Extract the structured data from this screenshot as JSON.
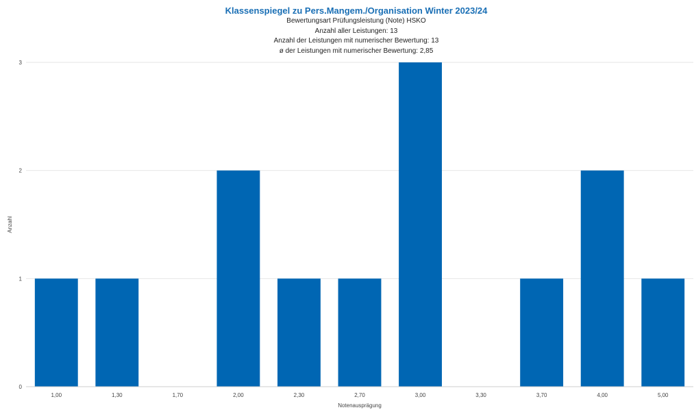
{
  "chart_data": {
    "type": "bar",
    "title": "Klassenspiegel zu Pers.Mangem./Organisation Winter 2023/24",
    "subtitle_lines": [
      "Bewertungsart Prüfungsleistung (Note) HSKO",
      "Anzahl aller Leistungen: 13",
      "Anzahl der Leistungen mit numerischer Bewertung: 13",
      "ø der Leistungen mit numerischer Bewertung: 2,85"
    ],
    "xlabel": "Notenausprägung",
    "ylabel": "Anzahl",
    "categories": [
      "1,00",
      "1,30",
      "1,70",
      "2,00",
      "2,30",
      "2,70",
      "3,00",
      "3,30",
      "3,70",
      "4,00",
      "5,00"
    ],
    "values": [
      1,
      1,
      0,
      2,
      1,
      1,
      3,
      0,
      1,
      2,
      1
    ],
    "ylim": [
      0,
      3
    ],
    "yticks": [
      "0",
      "1",
      "2",
      "3"
    ],
    "grid": true,
    "legend": "none",
    "colors": {
      "bar": "#0066b3",
      "title": "#1a6fb5",
      "grid": "#e6e6e6"
    }
  }
}
